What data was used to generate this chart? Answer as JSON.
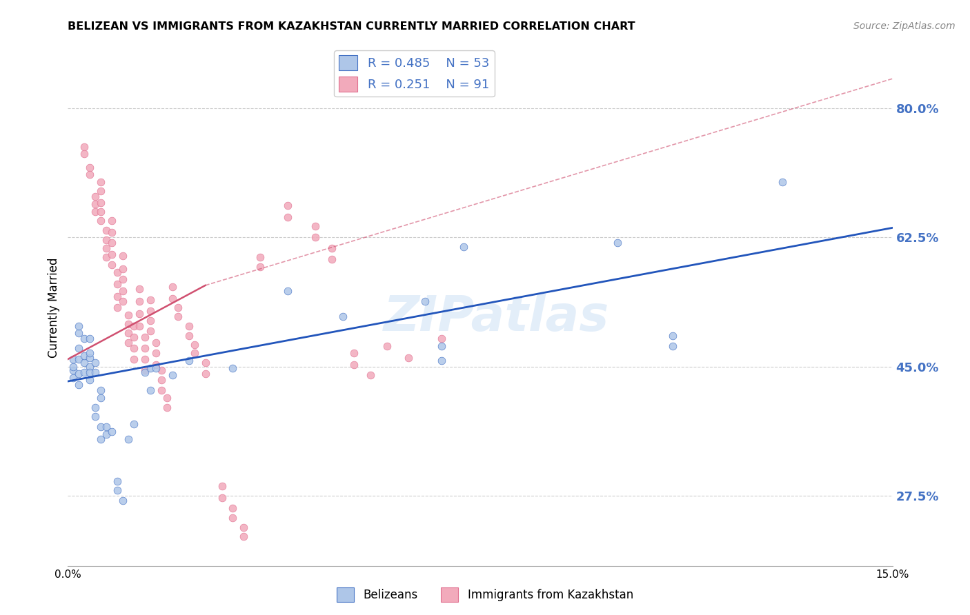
{
  "title": "BELIZEAN VS IMMIGRANTS FROM KAZAKHSTAN CURRENTLY MARRIED CORRELATION CHART",
  "source": "Source: ZipAtlas.com",
  "ylabel": "Currently Married",
  "watermark": "ZIPatlas",
  "legend_blue_R": "R = 0.485",
  "legend_blue_N": "N = 53",
  "legend_pink_R": "R = 0.251",
  "legend_pink_N": "N = 91",
  "blue_fill": "#aec6e8",
  "pink_fill": "#f2aabb",
  "blue_edge": "#4472c4",
  "pink_edge": "#e07090",
  "blue_line_color": "#2255bb",
  "pink_line_color": "#d05070",
  "blue_scatter": [
    [
      0.001,
      0.445
    ],
    [
      0.001,
      0.45
    ],
    [
      0.001,
      0.435
    ],
    [
      0.001,
      0.46
    ],
    [
      0.002,
      0.44
    ],
    [
      0.002,
      0.46
    ],
    [
      0.002,
      0.475
    ],
    [
      0.002,
      0.425
    ],
    [
      0.002,
      0.495
    ],
    [
      0.002,
      0.505
    ],
    [
      0.003,
      0.455
    ],
    [
      0.003,
      0.465
    ],
    [
      0.003,
      0.488
    ],
    [
      0.003,
      0.442
    ],
    [
      0.004,
      0.462
    ],
    [
      0.004,
      0.488
    ],
    [
      0.004,
      0.45
    ],
    [
      0.004,
      0.432
    ],
    [
      0.004,
      0.442
    ],
    [
      0.004,
      0.468
    ],
    [
      0.005,
      0.442
    ],
    [
      0.005,
      0.455
    ],
    [
      0.005,
      0.395
    ],
    [
      0.005,
      0.382
    ],
    [
      0.006,
      0.418
    ],
    [
      0.006,
      0.408
    ],
    [
      0.006,
      0.352
    ],
    [
      0.006,
      0.368
    ],
    [
      0.007,
      0.368
    ],
    [
      0.007,
      0.358
    ],
    [
      0.008,
      0.362
    ],
    [
      0.009,
      0.295
    ],
    [
      0.009,
      0.282
    ],
    [
      0.01,
      0.268
    ],
    [
      0.011,
      0.352
    ],
    [
      0.012,
      0.372
    ],
    [
      0.014,
      0.442
    ],
    [
      0.015,
      0.448
    ],
    [
      0.015,
      0.418
    ],
    [
      0.016,
      0.448
    ],
    [
      0.019,
      0.438
    ],
    [
      0.022,
      0.458
    ],
    [
      0.03,
      0.448
    ],
    [
      0.04,
      0.552
    ],
    [
      0.05,
      0.518
    ],
    [
      0.065,
      0.538
    ],
    [
      0.068,
      0.478
    ],
    [
      0.068,
      0.458
    ],
    [
      0.072,
      0.612
    ],
    [
      0.1,
      0.618
    ],
    [
      0.11,
      0.492
    ],
    [
      0.11,
      0.478
    ],
    [
      0.13,
      0.7
    ]
  ],
  "pink_scatter": [
    [
      0.003,
      0.748
    ],
    [
      0.003,
      0.738
    ],
    [
      0.004,
      0.72
    ],
    [
      0.004,
      0.71
    ],
    [
      0.005,
      0.68
    ],
    [
      0.005,
      0.67
    ],
    [
      0.005,
      0.66
    ],
    [
      0.006,
      0.7
    ],
    [
      0.006,
      0.688
    ],
    [
      0.006,
      0.672
    ],
    [
      0.006,
      0.66
    ],
    [
      0.006,
      0.648
    ],
    [
      0.007,
      0.635
    ],
    [
      0.007,
      0.622
    ],
    [
      0.007,
      0.61
    ],
    [
      0.007,
      0.598
    ],
    [
      0.008,
      0.648
    ],
    [
      0.008,
      0.632
    ],
    [
      0.008,
      0.618
    ],
    [
      0.008,
      0.602
    ],
    [
      0.008,
      0.588
    ],
    [
      0.009,
      0.578
    ],
    [
      0.009,
      0.562
    ],
    [
      0.009,
      0.545
    ],
    [
      0.009,
      0.53
    ],
    [
      0.01,
      0.6
    ],
    [
      0.01,
      0.582
    ],
    [
      0.01,
      0.568
    ],
    [
      0.01,
      0.552
    ],
    [
      0.01,
      0.538
    ],
    [
      0.011,
      0.52
    ],
    [
      0.011,
      0.508
    ],
    [
      0.011,
      0.495
    ],
    [
      0.011,
      0.482
    ],
    [
      0.012,
      0.505
    ],
    [
      0.012,
      0.49
    ],
    [
      0.012,
      0.475
    ],
    [
      0.012,
      0.46
    ],
    [
      0.013,
      0.555
    ],
    [
      0.013,
      0.538
    ],
    [
      0.013,
      0.522
    ],
    [
      0.013,
      0.505
    ],
    [
      0.014,
      0.49
    ],
    [
      0.014,
      0.475
    ],
    [
      0.014,
      0.46
    ],
    [
      0.014,
      0.445
    ],
    [
      0.015,
      0.54
    ],
    [
      0.015,
      0.525
    ],
    [
      0.015,
      0.512
    ],
    [
      0.015,
      0.498
    ],
    [
      0.016,
      0.482
    ],
    [
      0.016,
      0.468
    ],
    [
      0.016,
      0.452
    ],
    [
      0.017,
      0.445
    ],
    [
      0.017,
      0.432
    ],
    [
      0.017,
      0.418
    ],
    [
      0.018,
      0.408
    ],
    [
      0.018,
      0.395
    ],
    [
      0.019,
      0.558
    ],
    [
      0.019,
      0.542
    ],
    [
      0.02,
      0.53
    ],
    [
      0.02,
      0.518
    ],
    [
      0.022,
      0.505
    ],
    [
      0.022,
      0.492
    ],
    [
      0.023,
      0.48
    ],
    [
      0.023,
      0.468
    ],
    [
      0.025,
      0.455
    ],
    [
      0.025,
      0.44
    ],
    [
      0.028,
      0.288
    ],
    [
      0.028,
      0.272
    ],
    [
      0.03,
      0.258
    ],
    [
      0.03,
      0.245
    ],
    [
      0.032,
      0.232
    ],
    [
      0.032,
      0.22
    ],
    [
      0.035,
      0.598
    ],
    [
      0.035,
      0.585
    ],
    [
      0.04,
      0.668
    ],
    [
      0.04,
      0.652
    ],
    [
      0.045,
      0.64
    ],
    [
      0.045,
      0.625
    ],
    [
      0.048,
      0.61
    ],
    [
      0.048,
      0.595
    ],
    [
      0.052,
      0.468
    ],
    [
      0.052,
      0.452
    ],
    [
      0.055,
      0.438
    ],
    [
      0.058,
      0.478
    ],
    [
      0.062,
      0.462
    ],
    [
      0.068,
      0.488
    ]
  ],
  "blue_trendline": [
    [
      0.0,
      0.43
    ],
    [
      0.15,
      0.638
    ]
  ],
  "pink_solid_trendline": [
    [
      0.0,
      0.46
    ],
    [
      0.025,
      0.56
    ]
  ],
  "pink_dashed_trendline": [
    [
      0.025,
      0.56
    ],
    [
      0.15,
      0.84
    ]
  ],
  "xlim": [
    0.0,
    0.15
  ],
  "ylim": [
    0.18,
    0.88
  ],
  "ytick_vals": [
    0.275,
    0.45,
    0.625,
    0.8
  ],
  "ytick_labels": [
    "27.5%",
    "45.0%",
    "62.5%",
    "80.0%"
  ]
}
